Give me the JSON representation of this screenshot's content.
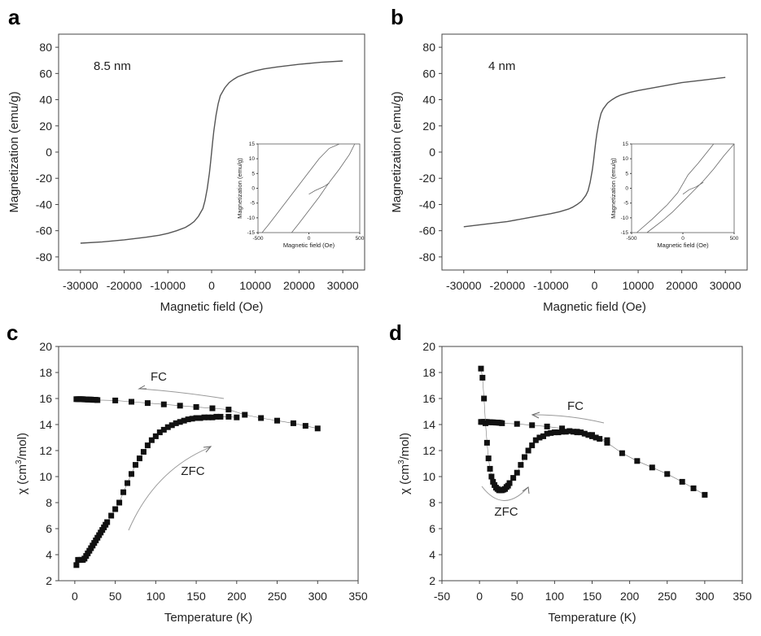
{
  "chart_data": [
    {
      "panel": "a",
      "type": "line",
      "title": "",
      "xlabel": "Magnetic field (Oe)",
      "ylabel": "Magnetization (emu/g)",
      "xlim": [
        -35000,
        35000
      ],
      "ylim": [
        -90,
        90
      ],
      "xticks": [
        -30000,
        -20000,
        -10000,
        0,
        10000,
        20000,
        30000
      ],
      "xtick_labels": [
        "-30000",
        "-20000",
        "-10000",
        "0",
        "10000",
        "20000",
        "30000"
      ],
      "yticks": [
        -80,
        -60,
        -40,
        -20,
        0,
        20,
        40,
        60,
        80
      ],
      "ytick_labels": [
        "-80",
        "-60",
        "-40",
        "-20",
        "0",
        "20",
        "40",
        "60",
        "80"
      ],
      "annotation": "8.5 nm",
      "series": [
        {
          "x": [
            -30000,
            -25000,
            -20000,
            -15000,
            -12000,
            -10000,
            -8000,
            -6000,
            -5000,
            -4000,
            -3000,
            -2000,
            -1500,
            -1000,
            -500,
            -250,
            0,
            250,
            500,
            1000,
            1500,
            2000,
            3000,
            4000,
            5000,
            6000,
            8000,
            10000,
            12000,
            15000,
            20000,
            25000,
            30000
          ],
          "y": [
            -69.5,
            -68.5,
            -67,
            -65,
            -63.5,
            -62,
            -60,
            -57.5,
            -55.5,
            -53,
            -49,
            -43,
            -37,
            -28,
            -16,
            -8,
            0,
            8,
            16,
            28,
            37,
            43,
            49,
            53,
            55.5,
            57.5,
            60,
            62,
            63.5,
            65,
            67,
            68.5,
            69.5
          ]
        }
      ],
      "inset": {
        "xlabel": "Magnetic field (Oe)",
        "ylabel": "Magnetization (emu/g)",
        "xlim": [
          -500,
          500
        ],
        "ylim": [
          -15,
          15
        ],
        "xticks": [
          -500,
          0,
          500
        ],
        "xtick_labels": [
          "-500",
          "0",
          "500"
        ],
        "yticks": [
          -15,
          -10,
          -5,
          0,
          5,
          10,
          15
        ],
        "ytick_labels": [
          "-15",
          "-10",
          "-5",
          "0",
          "5",
          "10",
          "15"
        ],
        "series": [
          {
            "x": [
              -460,
              -400,
              -300,
              -200,
              -100,
              0,
              100,
              200,
              300
            ],
            "y": [
              -15,
              -12.5,
              -8,
              -3.5,
              1,
              5.5,
              10,
              13.5,
              15
            ]
          },
          {
            "x": [
              -170,
              -100,
              0,
              100,
              200,
              300,
              400,
              450
            ],
            "y": [
              -15,
              -12,
              -7.5,
              -3,
              2,
              6.5,
              11.5,
              15
            ]
          },
          {
            "x": [
              0,
              60,
              150,
              200
            ],
            "y": [
              -2,
              -0.8,
              0.6,
              1.8
            ]
          }
        ]
      }
    },
    {
      "panel": "b",
      "type": "line",
      "title": "",
      "xlabel": "Magnetic field (Oe)",
      "ylabel": "Magnetization (emu/g)",
      "xlim": [
        -35000,
        35000
      ],
      "ylim": [
        -90,
        90
      ],
      "xticks": [
        -30000,
        -20000,
        -10000,
        0,
        10000,
        20000,
        30000
      ],
      "xtick_labels": [
        "-30000",
        "-20000",
        "-10000",
        "0",
        "10000",
        "20000",
        "30000"
      ],
      "yticks": [
        -80,
        -60,
        -40,
        -20,
        0,
        20,
        40,
        60,
        80
      ],
      "ytick_labels": [
        "-80",
        "-60",
        "-40",
        "-20",
        "0",
        "20",
        "40",
        "60",
        "80"
      ],
      "annotation": "4 nm",
      "series": [
        {
          "x": [
            -30000,
            -25000,
            -20000,
            -15000,
            -10000,
            -8000,
            -6000,
            -5000,
            -4000,
            -3000,
            -2000,
            -1500,
            -1000,
            -500,
            -250,
            0,
            250,
            500,
            1000,
            1500,
            2000,
            3000,
            4000,
            5000,
            6000,
            8000,
            10000,
            15000,
            20000,
            25000,
            30000
          ],
          "y": [
            -57,
            -55,
            -53,
            -50,
            -47,
            -45.5,
            -43.5,
            -42,
            -40,
            -37.5,
            -33,
            -29.5,
            -23,
            -13.5,
            -7,
            0,
            7,
            13.5,
            23,
            29.5,
            33,
            37.5,
            40,
            42,
            43.5,
            45.5,
            47,
            50,
            53,
            55,
            57
          ]
        }
      ],
      "inset": {
        "xlabel": "Magnetic field (Oe)",
        "ylabel": "Magnetization (emu/g)",
        "xlim": [
          -500,
          500
        ],
        "ylim": [
          -15,
          15
        ],
        "xticks": [
          -500,
          0,
          500
        ],
        "xtick_labels": [
          "-500",
          "0",
          "500"
        ],
        "yticks": [
          -15,
          -10,
          -5,
          0,
          5,
          10,
          15
        ],
        "ytick_labels": [
          "-15",
          "-10",
          "-5",
          "0",
          "5",
          "10",
          "15"
        ],
        "series": [
          {
            "x": [
              -450,
              -300,
              -150,
              -50,
              0,
              50,
              150,
              300
            ],
            "y": [
              -15,
              -10.5,
              -5.5,
              -1.5,
              1.5,
              4.5,
              8.5,
              15
            ]
          },
          {
            "x": [
              -350,
              -200,
              -100,
              0,
              100,
              200,
              300,
              400,
              500
            ],
            "y": [
              -15,
              -11,
              -8,
              -4.5,
              -1,
              2.5,
              6.5,
              11,
              15
            ]
          },
          {
            "x": [
              0,
              60,
              130,
              200
            ],
            "y": [
              -2,
              -0.5,
              0.5,
              2
            ]
          }
        ]
      }
    },
    {
      "panel": "c",
      "type": "scatter",
      "title": "",
      "xlabel": "Temperature (K)",
      "ylabel": "χ (cm³/mol)",
      "ylabel_parts": [
        "χ (cm",
        "3",
        "/mol)"
      ],
      "xlim": [
        -20,
        350
      ],
      "ylim": [
        2,
        20
      ],
      "xticks": [
        0,
        50,
        100,
        150,
        200,
        250,
        300,
        350
      ],
      "xtick_labels": [
        "0",
        "50",
        "100",
        "150",
        "200",
        "250",
        "300",
        "350"
      ],
      "yticks": [
        2,
        4,
        6,
        8,
        10,
        12,
        14,
        16,
        18,
        20
      ],
      "ytick_labels": [
        "2",
        "4",
        "6",
        "8",
        "10",
        "12",
        "14",
        "16",
        "18",
        "20"
      ],
      "annotations": [
        "FC",
        "ZFC"
      ],
      "series": [
        {
          "name": "FC",
          "x": [
            2,
            4,
            6,
            8,
            10,
            12,
            14,
            16,
            18,
            20,
            22,
            24,
            26,
            28,
            50,
            70,
            90,
            110,
            130,
            150,
            170,
            190,
            210,
            230,
            250,
            270,
            285,
            300
          ],
          "y": [
            15.95,
            15.95,
            15.95,
            15.95,
            15.95,
            15.93,
            15.93,
            15.92,
            15.92,
            15.92,
            15.9,
            15.9,
            15.9,
            15.88,
            15.85,
            15.75,
            15.65,
            15.55,
            15.45,
            15.35,
            15.25,
            15.15,
            14.75,
            14.5,
            14.3,
            14.1,
            13.9,
            13.7
          ]
        },
        {
          "name": "ZFC",
          "x": [
            2,
            4,
            6,
            8,
            10,
            12,
            14,
            16,
            18,
            20,
            22,
            24,
            26,
            28,
            30,
            32,
            34,
            36,
            38,
            40,
            45,
            50,
            55,
            60,
            65,
            70,
            75,
            80,
            85,
            90,
            95,
            100,
            105,
            110,
            115,
            120,
            125,
            130,
            135,
            140,
            145,
            150,
            155,
            160,
            165,
            170,
            175,
            180,
            190,
            200
          ],
          "y": [
            3.2,
            3.6,
            3.6,
            3.6,
            3.6,
            3.7,
            3.9,
            4.1,
            4.3,
            4.5,
            4.7,
            4.9,
            5.1,
            5.3,
            5.5,
            5.7,
            5.9,
            6.1,
            6.3,
            6.5,
            7.0,
            7.5,
            8.0,
            8.8,
            9.5,
            10.2,
            10.9,
            11.4,
            11.9,
            12.4,
            12.8,
            13.1,
            13.4,
            13.6,
            13.8,
            13.95,
            14.1,
            14.2,
            14.3,
            14.4,
            14.45,
            14.5,
            14.5,
            14.55,
            14.55,
            14.55,
            14.6,
            14.6,
            14.6,
            14.55
          ]
        }
      ]
    },
    {
      "panel": "d",
      "type": "scatter",
      "title": "",
      "xlabel": "Temperature (K)",
      "ylabel": "χ (cm³/mol)",
      "ylabel_parts": [
        "χ (cm",
        "3",
        "/mol)"
      ],
      "xlim": [
        -50,
        350
      ],
      "ylim": [
        2,
        20
      ],
      "xticks": [
        -50,
        0,
        50,
        100,
        150,
        200,
        250,
        300,
        350
      ],
      "xtick_labels": [
        "-50",
        "0",
        "50",
        "100",
        "150",
        "200",
        "250",
        "300",
        "350"
      ],
      "yticks": [
        2,
        4,
        6,
        8,
        10,
        12,
        14,
        16,
        18,
        20
      ],
      "ytick_labels": [
        "2",
        "4",
        "6",
        "8",
        "10",
        "12",
        "14",
        "16",
        "18",
        "20"
      ],
      "annotations": [
        "FC",
        "ZFC"
      ],
      "series": [
        {
          "name": "FC",
          "x": [
            2,
            4,
            6,
            8,
            10,
            12,
            14,
            16,
            18,
            20,
            22,
            24,
            26,
            28,
            30,
            50,
            70,
            90,
            110,
            130,
            150,
            170,
            190,
            210,
            230,
            250,
            270,
            285,
            300
          ],
          "y": [
            14.2,
            14.2,
            14.2,
            14.2,
            14.2,
            14.18,
            14.18,
            14.17,
            14.17,
            14.16,
            14.15,
            14.15,
            14.14,
            14.13,
            14.1,
            14.05,
            13.95,
            13.85,
            13.7,
            13.45,
            13.2,
            12.6,
            11.8,
            11.2,
            10.7,
            10.2,
            9.6,
            9.1,
            8.6
          ]
        },
        {
          "name": "ZFC",
          "x": [
            2,
            4,
            6,
            8,
            10,
            12,
            14,
            16,
            18,
            20,
            22,
            24,
            26,
            28,
            30,
            32,
            34,
            36,
            38,
            40,
            45,
            50,
            55,
            60,
            65,
            70,
            75,
            80,
            85,
            90,
            95,
            100,
            105,
            110,
            115,
            120,
            125,
            130,
            135,
            140,
            145,
            150,
            155,
            160,
            170
          ],
          "y": [
            18.3,
            17.6,
            16.0,
            14.1,
            12.6,
            11.4,
            10.6,
            10.0,
            9.6,
            9.35,
            9.15,
            9.05,
            8.95,
            8.95,
            8.95,
            9.0,
            9.05,
            9.2,
            9.3,
            9.5,
            9.9,
            10.3,
            10.9,
            11.5,
            12.0,
            12.4,
            12.8,
            13.0,
            13.1,
            13.3,
            13.35,
            13.4,
            13.4,
            13.45,
            13.45,
            13.5,
            13.45,
            13.4,
            13.4,
            13.3,
            13.2,
            13.1,
            13.0,
            12.9,
            12.8
          ]
        }
      ]
    }
  ]
}
